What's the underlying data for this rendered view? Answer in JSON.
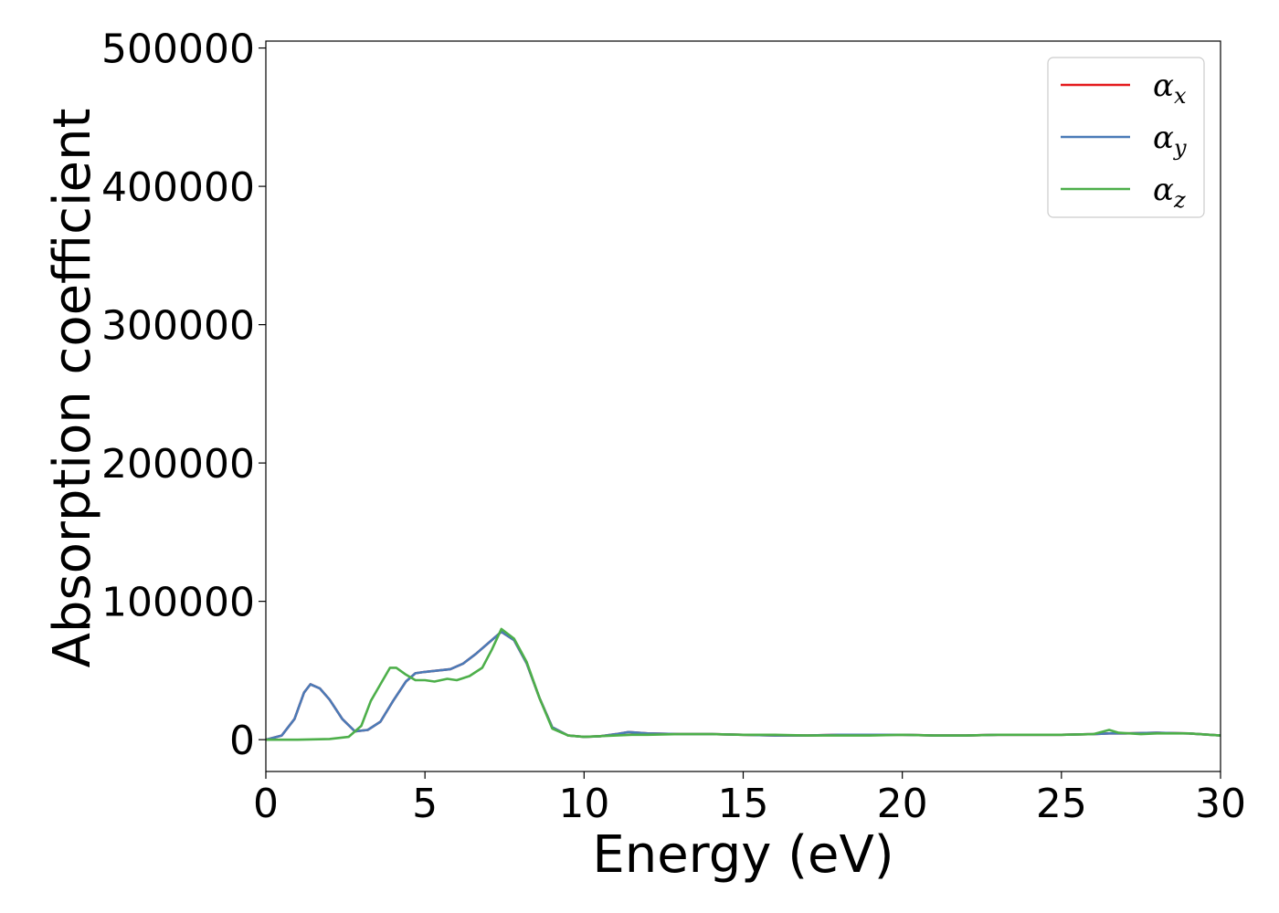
{
  "chart_data": {
    "type": "line",
    "title": "",
    "xlabel": "Energy (eV)",
    "ylabel": "Absorption coefficient",
    "xlim": [
      0,
      30
    ],
    "ylim": [
      -23000,
      505000
    ],
    "xticks": [
      0,
      5,
      10,
      15,
      20,
      25,
      30
    ],
    "xtick_labels": [
      "0",
      "5",
      "10",
      "15",
      "20",
      "25",
      "30"
    ],
    "yticks": [
      0,
      100000,
      200000,
      300000,
      400000,
      500000
    ],
    "ytick_labels": [
      "0",
      "100000",
      "200000",
      "300000",
      "400000",
      "500000"
    ],
    "grid": false,
    "legend_position": "top-right",
    "series": [
      {
        "name": "α_x",
        "legend_main": "α",
        "legend_sub": "x",
        "color": "#e41a1c",
        "x": [
          0,
          0.5,
          0.9,
          1.2,
          1.4,
          1.7,
          2.0,
          2.4,
          2.8,
          3.2,
          3.6,
          4.0,
          4.4,
          4.7,
          5.0,
          5.4,
          5.8,
          6.2,
          6.6,
          7.0,
          7.4,
          7.8,
          8.2,
          8.6,
          9.0,
          9.5,
          10.0,
          10.5,
          11.0,
          11.4,
          12.0,
          13.0,
          14.0,
          15.0,
          16.0,
          17.0,
          18.0,
          19.0,
          20.0,
          21.0,
          22.0,
          23.0,
          24.0,
          25.0,
          26.0,
          26.5,
          27.0,
          28.0,
          29.0,
          30.0
        ],
        "y": [
          0,
          3000,
          15000,
          34000,
          40000,
          37000,
          29000,
          15000,
          6000,
          7000,
          13000,
          28000,
          42000,
          48000,
          49000,
          50000,
          51000,
          55000,
          62000,
          70000,
          78000,
          72000,
          55000,
          30000,
          9000,
          3000,
          2000,
          2500,
          4000,
          5500,
          4500,
          4000,
          4000,
          3500,
          3000,
          3000,
          3500,
          3500,
          3500,
          3000,
          3000,
          3500,
          3500,
          3500,
          4000,
          4500,
          4500,
          5000,
          4500,
          3000
        ]
      },
      {
        "name": "α_y",
        "legend_main": "α",
        "legend_sub": "y",
        "color": "#4a7bb7",
        "x": [
          0,
          0.5,
          0.9,
          1.2,
          1.4,
          1.7,
          2.0,
          2.4,
          2.8,
          3.2,
          3.6,
          4.0,
          4.4,
          4.7,
          5.0,
          5.4,
          5.8,
          6.2,
          6.6,
          7.0,
          7.4,
          7.8,
          8.2,
          8.6,
          9.0,
          9.5,
          10.0,
          10.5,
          11.0,
          11.4,
          12.0,
          13.0,
          14.0,
          15.0,
          16.0,
          17.0,
          18.0,
          19.0,
          20.0,
          21.0,
          22.0,
          23.0,
          24.0,
          25.0,
          26.0,
          26.5,
          27.0,
          28.0,
          29.0,
          30.0
        ],
        "y": [
          0,
          3000,
          15000,
          34000,
          40000,
          37000,
          29000,
          15000,
          6000,
          7000,
          13000,
          28000,
          42000,
          48000,
          49000,
          50000,
          51000,
          55000,
          62000,
          70000,
          78000,
          72000,
          55000,
          30000,
          9000,
          3000,
          2000,
          2500,
          4000,
          5500,
          4500,
          4000,
          4000,
          3500,
          3000,
          3000,
          3500,
          3500,
          3500,
          3000,
          3000,
          3500,
          3500,
          3500,
          4000,
          4500,
          4500,
          5000,
          4500,
          3000
        ]
      },
      {
        "name": "α_z",
        "legend_main": "α",
        "legend_sub": "z",
        "color": "#4daf4a",
        "x": [
          0,
          1.0,
          2.0,
          2.6,
          3.0,
          3.3,
          3.6,
          3.9,
          4.1,
          4.4,
          4.7,
          5.0,
          5.3,
          5.7,
          6.0,
          6.4,
          6.8,
          7.1,
          7.4,
          7.8,
          8.2,
          8.6,
          9.0,
          9.5,
          10.0,
          11.0,
          11.5,
          12.0,
          13.0,
          14.0,
          15.0,
          16.0,
          17.0,
          18.0,
          19.0,
          20.0,
          21.0,
          22.0,
          23.0,
          24.0,
          25.0,
          26.0,
          26.5,
          26.8,
          27.5,
          28.0,
          29.0,
          30.0
        ],
        "y": [
          0,
          0,
          500,
          2000,
          10000,
          28000,
          40000,
          52000,
          52000,
          47000,
          43000,
          43000,
          42000,
          44000,
          43000,
          46000,
          52000,
          65000,
          80000,
          73000,
          56000,
          30000,
          8000,
          3000,
          2000,
          3000,
          3500,
          3500,
          4000,
          4000,
          3500,
          3500,
          3000,
          3000,
          3000,
          3500,
          3000,
          3000,
          3500,
          3500,
          3500,
          4000,
          7000,
          5000,
          4000,
          4500,
          4500,
          3000
        ]
      }
    ]
  }
}
